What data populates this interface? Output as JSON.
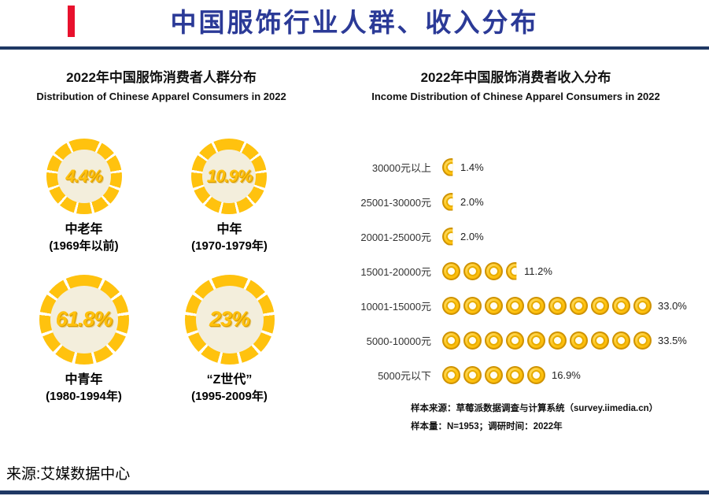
{
  "page": {
    "title": "中国服饰行业人群、收入分布",
    "source": "来源:艾媒数据中心",
    "colors": {
      "title_blue": "#2B3A97",
      "navy_rule": "#1F3864",
      "gold": "#FFC20E",
      "accent_red": "#E8112D",
      "donut_inner": "#F3EEDC"
    }
  },
  "left_panel": {
    "title": "2022年中国服饰消费者人群分布",
    "subtitle": "Distribution of Chinese Apparel Consumers in 2022",
    "donuts": [
      {
        "value": "4.4%",
        "label": "中老年",
        "sublabel": "(1969年以前)"
      },
      {
        "value": "10.9%",
        "label": "中年",
        "sublabel": "(1970-1979年)"
      },
      {
        "value": "61.8%",
        "label": "中青年",
        "sublabel": "(1980-1994年)"
      },
      {
        "value": "23%",
        "label": "“Z世代”",
        "sublabel": "(1995-2009年)"
      }
    ]
  },
  "right_panel": {
    "title": "2022年中国服饰消费者收入分布",
    "subtitle": "Income Distribution of Chinese Apparel Consumers in 2022",
    "rows": [
      {
        "label": "30000元以上",
        "value": "1.4%",
        "coins_full": 0,
        "coin_partial": true
      },
      {
        "label": "25001-30000元",
        "value": "2.0%",
        "coins_full": 0,
        "coin_partial": true
      },
      {
        "label": "20001-25000元",
        "value": "2.0%",
        "coins_full": 0,
        "coin_partial": true
      },
      {
        "label": "15001-20000元",
        "value": "11.2%",
        "coins_full": 3,
        "coin_partial": true
      },
      {
        "label": "10001-15000元",
        "value": "33.0%",
        "coins_full": 10,
        "coin_partial": false
      },
      {
        "label": "5000-10000元",
        "value": "33.5%",
        "coins_full": 10,
        "coin_partial": false
      },
      {
        "label": "5000元以下",
        "value": "16.9%",
        "coins_full": 5,
        "coin_partial": false
      }
    ],
    "footnote1": "样本来源：草莓派数据调查与计算系统（survey.iimedia.cn）",
    "footnote2": "样本量：N=1953；调研时间：2022年"
  },
  "chart_data": [
    {
      "type": "pie",
      "title": "2022年中国服饰消费者人群分布",
      "subtitle": "Distribution of Chinese Apparel Consumers in 2022",
      "categories": [
        "中老年(1969年以前)",
        "中年(1970-1979年)",
        "中青年(1980-1994年)",
        "“Z世代”(1995-2009年)"
      ],
      "values": [
        4.4,
        10.9,
        61.8,
        23
      ],
      "unit": "%",
      "style": "four-single-value-donuts"
    },
    {
      "type": "bar",
      "title": "2022年中国服饰消费者收入分布",
      "subtitle": "Income Distribution of Chinese Apparel Consumers in 2022",
      "categories": [
        "30000元以上",
        "25001-30000元",
        "20001-25000元",
        "15001-20000元",
        "10001-15000元",
        "5000-10000元",
        "5000元以下"
      ],
      "values": [
        1.4,
        2.0,
        2.0,
        11.2,
        33.0,
        33.5,
        16.9
      ],
      "unit": "%",
      "orientation": "horizontal",
      "style": "pictograph-coins",
      "notes": [
        "样本来源：草莓派数据调查与计算系统（survey.iimedia.cn）",
        "样本量：N=1953；调研时间：2022年"
      ]
    }
  ]
}
